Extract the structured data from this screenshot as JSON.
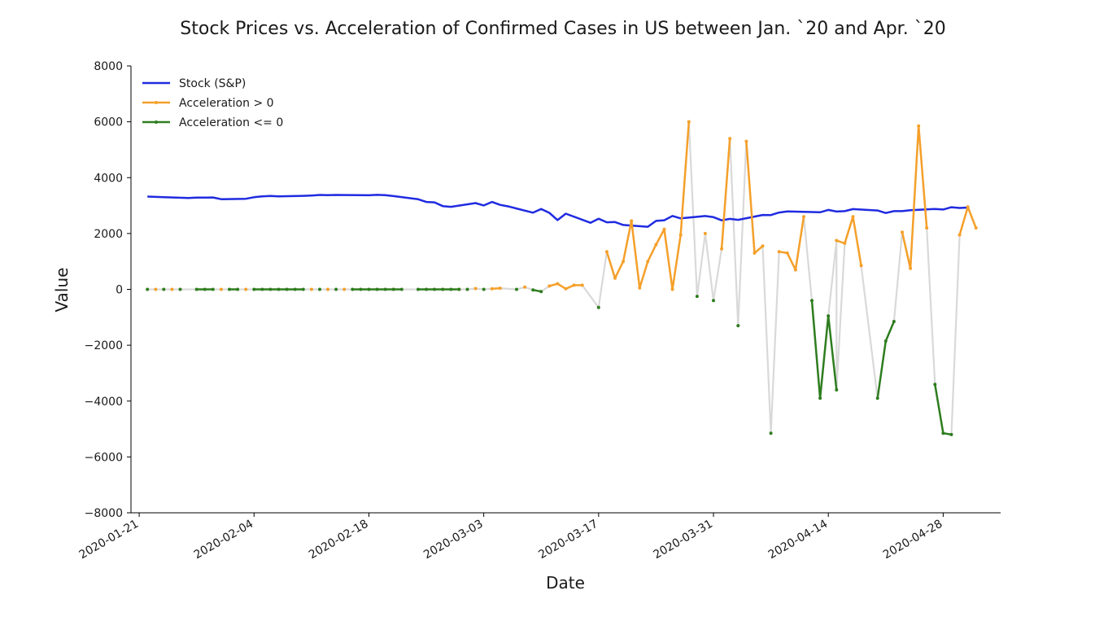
{
  "chart_data": {
    "type": "line",
    "title": "Stock Prices vs. Acceleration of Confirmed Cases in US between Jan. `20 and Apr. `20",
    "xlabel": "Date",
    "ylabel": "Value",
    "ylim": [
      -8000,
      8000
    ],
    "xlim": [
      "2020-01-20",
      "2020-05-05"
    ],
    "grid": false,
    "legend_position": "top-left",
    "x_ticks": [
      "2020-01-21",
      "2020-02-04",
      "2020-02-18",
      "2020-03-03",
      "2020-03-17",
      "2020-03-31",
      "2020-04-14",
      "2020-04-28"
    ],
    "y_ticks": [
      8000,
      6000,
      4000,
      2000,
      0,
      -2000,
      -4000,
      -6000,
      -8000
    ],
    "y_tick_labels": [
      "8000",
      "6000",
      "4000",
      "2000",
      "0",
      "−2000",
      "−4000",
      "−6000",
      "−8000"
    ],
    "colors": {
      "stock": "#1f2be0",
      "acceleration_positive": "#f5a02a",
      "acceleration_nonpositive": "#2e7d1f",
      "connector": "#d9d9d9"
    },
    "series": [
      {
        "name": "Stock (S&P)",
        "points": [
          [
            "2020-01-22",
            3322
          ],
          [
            "2020-01-23",
            3310
          ],
          [
            "2020-01-24",
            3300
          ],
          [
            "2020-01-27",
            3270
          ],
          [
            "2020-01-28",
            3285
          ],
          [
            "2020-01-29",
            3285
          ],
          [
            "2020-01-30",
            3290
          ],
          [
            "2020-01-31",
            3230
          ],
          [
            "2020-02-03",
            3245
          ],
          [
            "2020-02-04",
            3300
          ],
          [
            "2020-02-05",
            3330
          ],
          [
            "2020-02-06",
            3345
          ],
          [
            "2020-02-07",
            3330
          ],
          [
            "2020-02-10",
            3350
          ],
          [
            "2020-02-11",
            3360
          ],
          [
            "2020-02-12",
            3380
          ],
          [
            "2020-02-13",
            3375
          ],
          [
            "2020-02-14",
            3380
          ],
          [
            "2020-02-18",
            3370
          ],
          [
            "2020-02-19",
            3385
          ],
          [
            "2020-02-20",
            3375
          ],
          [
            "2020-02-21",
            3340
          ],
          [
            "2020-02-24",
            3225
          ],
          [
            "2020-02-25",
            3130
          ],
          [
            "2020-02-26",
            3115
          ],
          [
            "2020-02-27",
            2980
          ],
          [
            "2020-02-28",
            2955
          ],
          [
            "2020-03-02",
            3090
          ],
          [
            "2020-03-03",
            3005
          ],
          [
            "2020-03-04",
            3130
          ],
          [
            "2020-03-05",
            3025
          ],
          [
            "2020-03-06",
            2970
          ],
          [
            "2020-03-09",
            2745
          ],
          [
            "2020-03-10",
            2880
          ],
          [
            "2020-03-11",
            2740
          ],
          [
            "2020-03-12",
            2480
          ],
          [
            "2020-03-13",
            2710
          ],
          [
            "2020-03-16",
            2385
          ],
          [
            "2020-03-17",
            2530
          ],
          [
            "2020-03-18",
            2400
          ],
          [
            "2020-03-19",
            2410
          ],
          [
            "2020-03-20",
            2305
          ],
          [
            "2020-03-23",
            2240
          ],
          [
            "2020-03-24",
            2450
          ],
          [
            "2020-03-25",
            2475
          ],
          [
            "2020-03-26",
            2630
          ],
          [
            "2020-03-27",
            2540
          ],
          [
            "2020-03-30",
            2625
          ],
          [
            "2020-03-31",
            2585
          ],
          [
            "2020-04-01",
            2470
          ],
          [
            "2020-04-02",
            2525
          ],
          [
            "2020-04-03",
            2490
          ],
          [
            "2020-04-06",
            2665
          ],
          [
            "2020-04-07",
            2660
          ],
          [
            "2020-04-08",
            2750
          ],
          [
            "2020-04-09",
            2790
          ],
          [
            "2020-04-13",
            2760
          ],
          [
            "2020-04-14",
            2845
          ],
          [
            "2020-04-15",
            2785
          ],
          [
            "2020-04-16",
            2800
          ],
          [
            "2020-04-17",
            2875
          ],
          [
            "2020-04-20",
            2825
          ],
          [
            "2020-04-21",
            2735
          ],
          [
            "2020-04-22",
            2800
          ],
          [
            "2020-04-23",
            2800
          ],
          [
            "2020-04-24",
            2835
          ],
          [
            "2020-04-27",
            2880
          ],
          [
            "2020-04-28",
            2860
          ],
          [
            "2020-04-29",
            2940
          ],
          [
            "2020-04-30",
            2915
          ],
          [
            "2020-05-01",
            2930
          ]
        ]
      },
      {
        "name": "Acceleration > 0",
        "segments": [
          [
            [
              "2020-01-23",
              0
            ]
          ],
          [
            [
              "2020-01-25",
              0
            ]
          ],
          [
            [
              "2020-01-31",
              0
            ]
          ],
          [
            [
              "2020-02-03",
              0
            ]
          ],
          [
            [
              "2020-02-11",
              0
            ]
          ],
          [
            [
              "2020-02-13",
              0
            ]
          ],
          [
            [
              "2020-02-15",
              0
            ]
          ],
          [
            [
              "2020-02-21",
              0
            ]
          ],
          [
            [
              "2020-02-27",
              0
            ]
          ],
          [
            [
              "2020-02-29",
              0
            ]
          ],
          [
            [
              "2020-03-02",
              30
            ]
          ],
          [
            [
              "2020-03-04",
              20
            ],
            [
              "2020-03-05",
              40
            ]
          ],
          [
            [
              "2020-03-08",
              80
            ]
          ],
          [
            [
              "2020-03-11",
              120
            ],
            [
              "2020-03-12",
              200
            ],
            [
              "2020-03-13",
              20
            ],
            [
              "2020-03-14",
              150
            ],
            [
              "2020-03-15",
              150
            ]
          ],
          [
            [
              "2020-03-18",
              1350
            ],
            [
              "2020-03-19",
              400
            ],
            [
              "2020-03-20",
              1000
            ],
            [
              "2020-03-21",
              2450
            ],
            [
              "2020-03-22",
              50
            ],
            [
              "2020-03-23",
              1000
            ],
            [
              "2020-03-24",
              1600
            ],
            [
              "2020-03-25",
              2150
            ],
            [
              "2020-03-26",
              0
            ],
            [
              "2020-03-27",
              1950
            ],
            [
              "2020-03-28",
              6000
            ]
          ],
          [
            [
              "2020-03-30",
              2000
            ]
          ],
          [
            [
              "2020-04-01",
              1450
            ],
            [
              "2020-04-02",
              5400
            ]
          ],
          [
            [
              "2020-04-04",
              5300
            ],
            [
              "2020-04-05",
              1300
            ],
            [
              "2020-04-06",
              1550
            ]
          ],
          [
            [
              "2020-04-08",
              1350
            ],
            [
              "2020-04-09",
              1300
            ],
            [
              "2020-04-10",
              700
            ],
            [
              "2020-04-11",
              2600
            ]
          ],
          [
            [
              "2020-04-15",
              1750
            ],
            [
              "2020-04-16",
              1650
            ],
            [
              "2020-04-17",
              2600
            ],
            [
              "2020-04-18",
              850
            ]
          ],
          [
            [
              "2020-04-23",
              2050
            ],
            [
              "2020-04-24",
              750
            ],
            [
              "2020-04-25",
              5850
            ],
            [
              "2020-04-26",
              2200
            ]
          ],
          [
            [
              "2020-04-30",
              1950
            ],
            [
              "2020-05-01",
              2950
            ],
            [
              "2020-05-02",
              2200
            ]
          ]
        ]
      },
      {
        "name": "Acceleration <= 0",
        "segments": [
          [
            [
              "2020-01-22",
              0
            ]
          ],
          [
            [
              "2020-01-24",
              0
            ]
          ],
          [
            [
              "2020-01-26",
              0
            ]
          ],
          [
            [
              "2020-01-28",
              0
            ],
            [
              "2020-01-29",
              0
            ],
            [
              "2020-01-30",
              0
            ]
          ],
          [
            [
              "2020-02-01",
              0
            ],
            [
              "2020-02-02",
              0
            ]
          ],
          [
            [
              "2020-02-04",
              0
            ],
            [
              "2020-02-05",
              0
            ],
            [
              "2020-02-06",
              0
            ],
            [
              "2020-02-07",
              0
            ],
            [
              "2020-02-08",
              0
            ],
            [
              "2020-02-09",
              0
            ],
            [
              "2020-02-10",
              0
            ]
          ],
          [
            [
              "2020-02-12",
              0
            ]
          ],
          [
            [
              "2020-02-14",
              0
            ]
          ],
          [
            [
              "2020-02-16",
              0
            ],
            [
              "2020-02-17",
              0
            ],
            [
              "2020-02-18",
              0
            ],
            [
              "2020-02-19",
              0
            ],
            [
              "2020-02-20",
              0
            ],
            [
              "2020-02-21",
              0
            ],
            [
              "2020-02-22",
              0
            ]
          ],
          [
            [
              "2020-02-24",
              0
            ],
            [
              "2020-02-25",
              0
            ],
            [
              "2020-02-26",
              0
            ],
            [
              "2020-02-27",
              0
            ],
            [
              "2020-02-28",
              0
            ],
            [
              "2020-02-29",
              0
            ]
          ],
          [
            [
              "2020-03-01",
              0
            ]
          ],
          [
            [
              "2020-03-03",
              0
            ]
          ],
          [
            [
              "2020-03-07",
              0
            ]
          ],
          [
            [
              "2020-03-09",
              -20
            ],
            [
              "2020-03-10",
              -80
            ]
          ],
          [
            [
              "2020-03-17",
              -650
            ]
          ],
          [
            [
              "2020-03-29",
              -250
            ]
          ],
          [
            [
              "2020-03-31",
              -400
            ]
          ],
          [
            [
              "2020-04-03",
              -1300
            ]
          ],
          [
            [
              "2020-04-07",
              -5150
            ]
          ],
          [
            [
              "2020-04-12",
              -400
            ],
            [
              "2020-04-13",
              -3900
            ],
            [
              "2020-04-14",
              -950
            ],
            [
              "2020-04-15",
              -3600
            ]
          ],
          [
            [
              "2020-04-20",
              -3900
            ],
            [
              "2020-04-21",
              -1850
            ],
            [
              "2020-04-22",
              -1150
            ]
          ],
          [
            [
              "2020-04-27",
              -3400
            ],
            [
              "2020-04-28",
              -5150
            ],
            [
              "2020-04-29",
              -5200
            ]
          ]
        ]
      }
    ]
  }
}
